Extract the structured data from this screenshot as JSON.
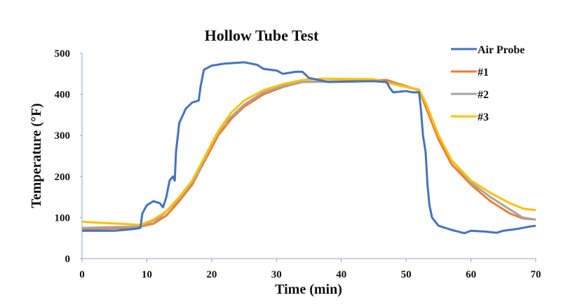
{
  "chart_data": {
    "type": "line",
    "title": "Hollow Tube Test",
    "xlabel": "Time (min)",
    "ylabel": "Temperature (°F)",
    "xlim": [
      0,
      70
    ],
    "ylim": [
      0,
      500
    ],
    "xticks": [
      0,
      10,
      20,
      30,
      40,
      50,
      60,
      70
    ],
    "yticks": [
      0,
      100,
      200,
      300,
      400,
      500
    ],
    "grid": false,
    "legend": "right",
    "series": [
      {
        "name": "Air Probe",
        "color": "#4472C4",
        "x": [
          0,
          5,
          8,
          9,
          9.3,
          10,
          11,
          12,
          12.5,
          13,
          13.5,
          14,
          14.3,
          14.5,
          15,
          16,
          17,
          18,
          18.3,
          18.8,
          20,
          22,
          25,
          27,
          28,
          30,
          31,
          33,
          34,
          35,
          38,
          45,
          47,
          47.5,
          48,
          50,
          51,
          52,
          52.3,
          52.6,
          53,
          53.3,
          53.6,
          54,
          55,
          57,
          59,
          60,
          62,
          64,
          65,
          67,
          69,
          70
        ],
        "y": [
          68,
          68,
          72,
          75,
          110,
          130,
          140,
          135,
          125,
          150,
          190,
          200,
          190,
          260,
          330,
          365,
          380,
          385,
          420,
          460,
          470,
          475,
          478,
          472,
          462,
          458,
          450,
          455,
          455,
          440,
          430,
          432,
          430,
          415,
          405,
          408,
          405,
          405,
          360,
          300,
          260,
          180,
          130,
          100,
          80,
          70,
          62,
          68,
          66,
          63,
          68,
          72,
          78,
          80
        ]
      },
      {
        "name": "#1",
        "color": "#ED7D31",
        "x": [
          0,
          8,
          9,
          11,
          13,
          15,
          17,
          19,
          21,
          23,
          25,
          28,
          31,
          34,
          40,
          47,
          48,
          50,
          52,
          53,
          55,
          57,
          60,
          63,
          66,
          68,
          70
        ],
        "y": [
          72,
          75,
          78,
          85,
          105,
          140,
          180,
          240,
          300,
          340,
          370,
          400,
          418,
          430,
          432,
          435,
          430,
          420,
          410,
          370,
          290,
          230,
          180,
          140,
          110,
          98,
          95
        ]
      },
      {
        "name": "#2",
        "color": "#A5A5A5",
        "x": [
          0,
          8,
          10,
          12,
          14,
          16,
          18,
          20,
          22,
          25,
          28,
          31,
          34,
          45,
          48,
          50,
          52,
          53,
          55,
          57,
          60,
          63,
          66,
          68,
          70
        ],
        "y": [
          75,
          78,
          85,
          100,
          130,
          165,
          210,
          280,
          330,
          375,
          405,
          420,
          430,
          432,
          428,
          418,
          410,
          380,
          300,
          240,
          185,
          150,
          120,
          100,
          95
        ]
      },
      {
        "name": "#3",
        "color": "#FFC000",
        "x": [
          0,
          3,
          6,
          9,
          11,
          13,
          15,
          17,
          19,
          21,
          23,
          25,
          28,
          31,
          34,
          37,
          45,
          48,
          50,
          52,
          53,
          55,
          57,
          60,
          63,
          66,
          68,
          70
        ],
        "y": [
          90,
          87,
          85,
          82,
          95,
          115,
          150,
          190,
          250,
          310,
          355,
          385,
          410,
          425,
          435,
          438,
          437,
          425,
          418,
          412,
          380,
          300,
          240,
          190,
          160,
          135,
          122,
          118
        ]
      }
    ]
  }
}
